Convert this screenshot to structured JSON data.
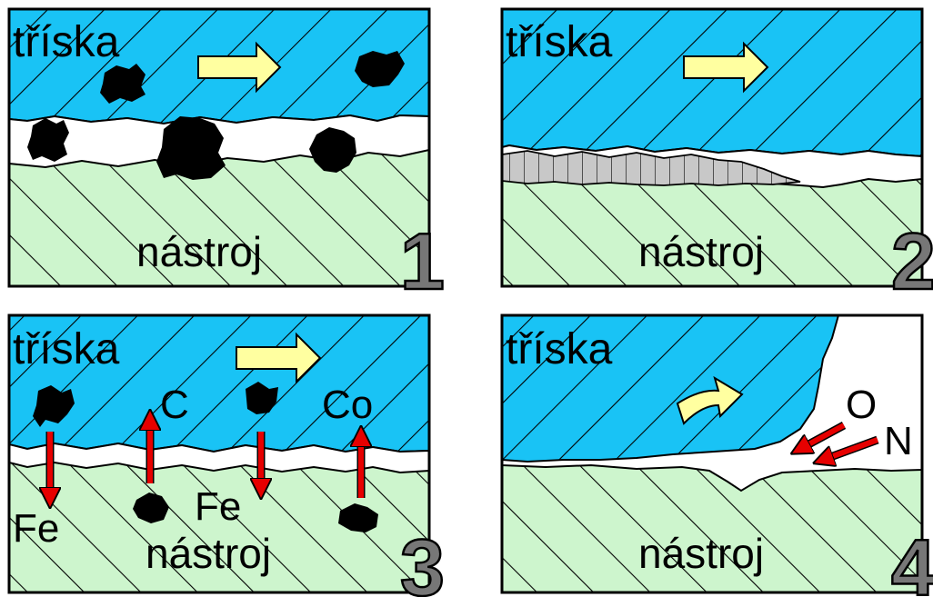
{
  "colors": {
    "chip": "#19c3f5",
    "tool": "#cdf5cd",
    "arrow": "#ffffa0",
    "red_arrow": "#e60000",
    "particle": "#000000",
    "gap": "#ffffff",
    "layer": "#c8c8c8",
    "number": "#777777"
  },
  "panels": [
    {
      "number": "1",
      "chip_label": "tříska",
      "tool_label": "nástroj"
    },
    {
      "number": "2",
      "chip_label": "tříska",
      "tool_label": "nástroj"
    },
    {
      "number": "3",
      "chip_label": "tříska",
      "tool_label": "nástroj",
      "elements": [
        "C",
        "Co",
        "Fe",
        "Fe"
      ]
    },
    {
      "number": "4",
      "chip_label": "tříska",
      "tool_label": "nástroj",
      "gases": [
        "O",
        "N"
      ]
    }
  ]
}
